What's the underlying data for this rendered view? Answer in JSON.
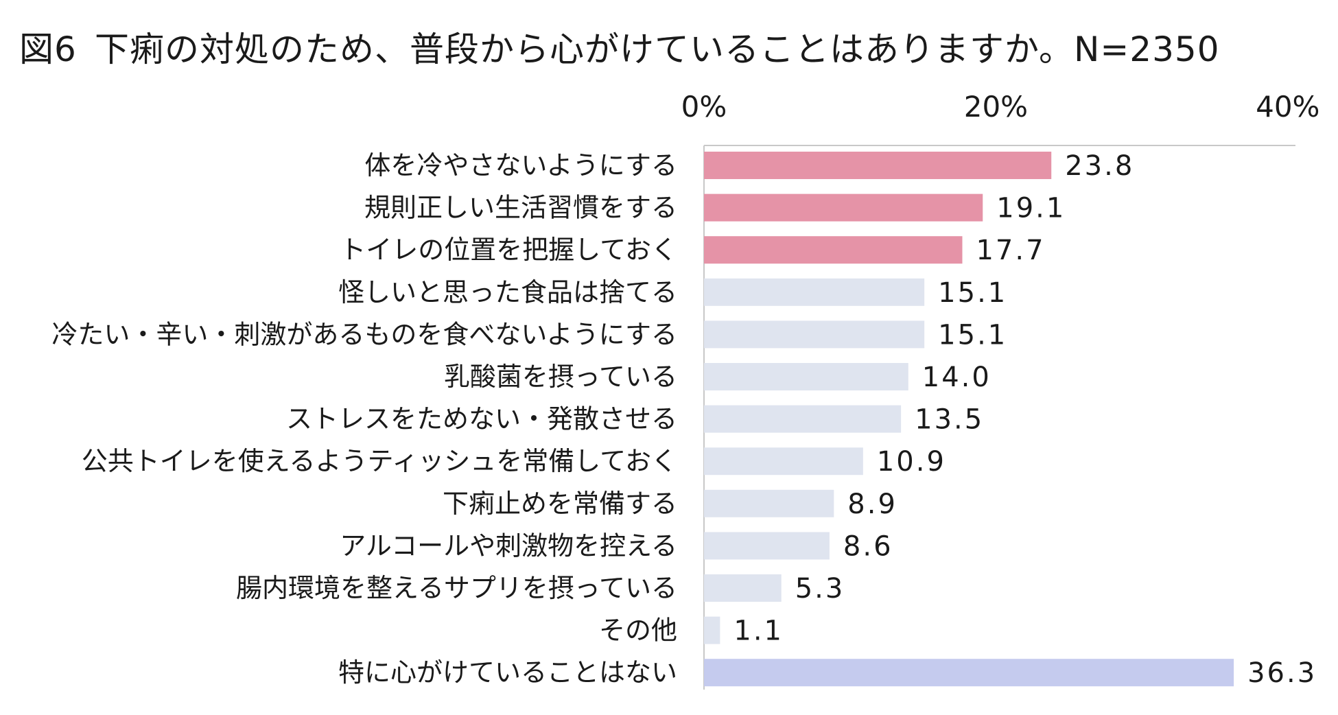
{
  "chart_data": {
    "type": "bar",
    "orientation": "horizontal",
    "title_prefix": "図6",
    "title": "下痢の対処のため、普段から心がけていることはありますか。N=2350",
    "xlim": [
      0,
      40
    ],
    "ticks": [
      0,
      20,
      40
    ],
    "tick_labels": [
      "0%",
      "20%",
      "40%"
    ],
    "categories": [
      "体を冷やさないようにする",
      "規則正しい生活習慣をする",
      "トイレの位置を把握しておく",
      "怪しいと思った食品は捨てる",
      "冷たい・辛い・刺激があるものを食べないようにする",
      "乳酸菌を摂っている",
      "ストレスをためない・発散させる",
      "公共トイレを使えるようティッシュを常備しておく",
      "下痢止めを常備する",
      "アルコールや刺激物を控える",
      "腸内環境を整えるサプリを摂っている",
      "その他",
      "特に心がけていることはない"
    ],
    "values": [
      23.8,
      19.1,
      17.7,
      15.1,
      15.1,
      14.0,
      13.5,
      10.9,
      8.9,
      8.6,
      5.3,
      1.1,
      36.3
    ],
    "value_labels": [
      "23.8",
      "19.1",
      "17.7",
      "15.1",
      "15.1",
      "14.0",
      "13.5",
      "10.9",
      "8.9",
      "8.6",
      "5.3",
      "1.1",
      "36.3"
    ],
    "colors": [
      "#e593a7",
      "#e593a7",
      "#e593a7",
      "#dfe4ef",
      "#dfe4ef",
      "#dfe4ef",
      "#dfe4ef",
      "#dfe4ef",
      "#dfe4ef",
      "#dfe4ef",
      "#dfe4ef",
      "#dfe4ef",
      "#c5cbee"
    ]
  }
}
